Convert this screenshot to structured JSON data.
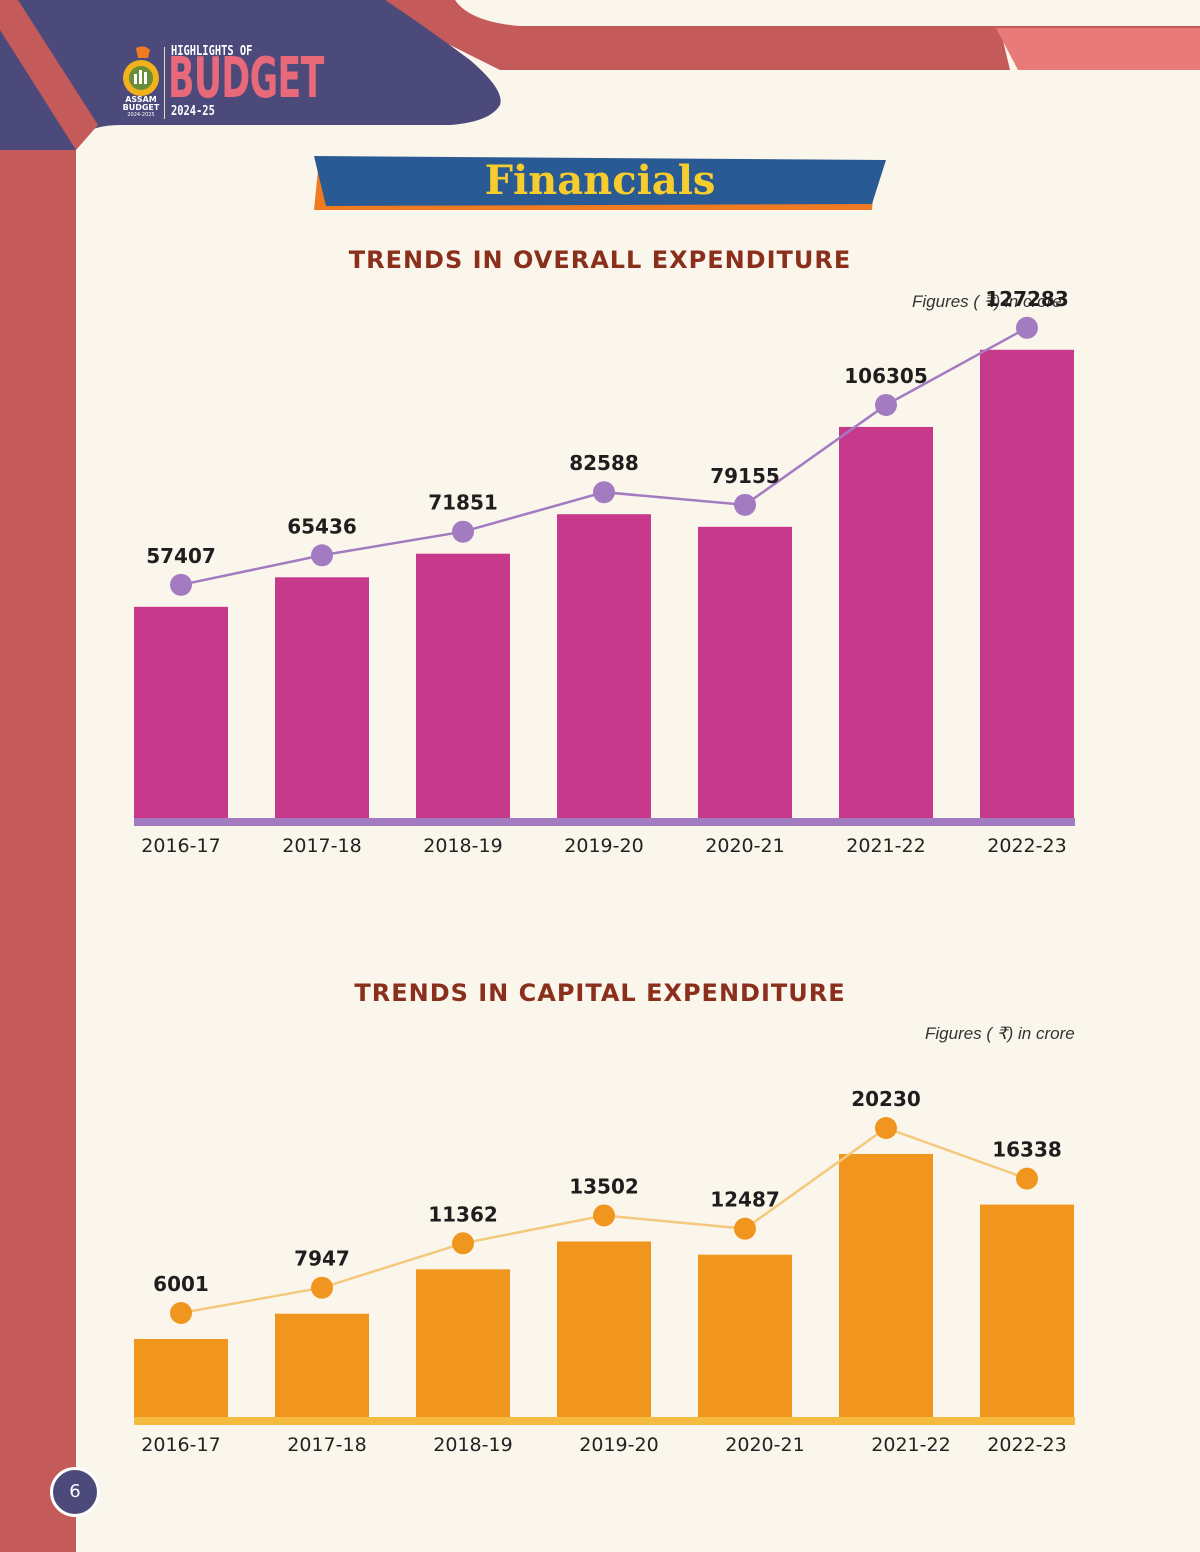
{
  "header": {
    "logo_small_line1": "ASSAM",
    "logo_small_line2": "BUDGET",
    "logo_small_line3": "2024-2025",
    "logo_top": "HIGHLIGHTS OF",
    "logo_main": "BUDGET",
    "logo_year": "2024-25"
  },
  "banner": {
    "title": "Financials"
  },
  "page_number": "6",
  "colors": {
    "background": "#fbf6ec",
    "side_band": "#c55a5b",
    "header_navy": "#4b4a7a",
    "banner_blue": "#2a5a94",
    "banner_orange": "#f07a22",
    "title_yellow": "#f6cd2d",
    "section_title": "#8b2f1d",
    "overall_bar": "#c7398b",
    "overall_line": "#a27bc0",
    "capital_bar": "#f0961f",
    "capital_line": "#f5c97d"
  },
  "chart_data": [
    {
      "type": "bar",
      "title": "TRENDS IN OVERALL EXPENDITURE",
      "unit_note": "Figures ( ₹) in crore",
      "categories": [
        "2016-17",
        "2017-18",
        "2018-19",
        "2019-20",
        "2020-21",
        "2021-22",
        "2022-23"
      ],
      "series": [
        {
          "values": [
            57407,
            65436,
            71851,
            82588,
            79155,
            106305,
            127283
          ]
        }
      ],
      "overlay": "line-with-markers",
      "data_labels": [
        "57407",
        "65436",
        "71851",
        "82588",
        "79155",
        "106305",
        "127283"
      ],
      "ylim": [
        0,
        140000
      ],
      "grid": false,
      "legend": "none"
    },
    {
      "type": "bar",
      "title": "TRENDS IN CAPITAL EXPENDITURE",
      "unit_note": "Figures ( ₹) in crore",
      "categories": [
        "2016-17",
        "2017-18",
        "2018-19",
        "2019-20",
        "2020-21",
        "2021-22",
        "2022-23"
      ],
      "series": [
        {
          "values": [
            6001,
            7947,
            11362,
            13502,
            12487,
            20230,
            16338
          ]
        }
      ],
      "overlay": "line-with-markers",
      "data_labels": [
        "6001",
        "7947",
        "11362",
        "13502",
        "12487",
        "20230",
        "16338"
      ],
      "ylim": [
        0,
        22000
      ],
      "grid": false,
      "legend": "none"
    }
  ]
}
